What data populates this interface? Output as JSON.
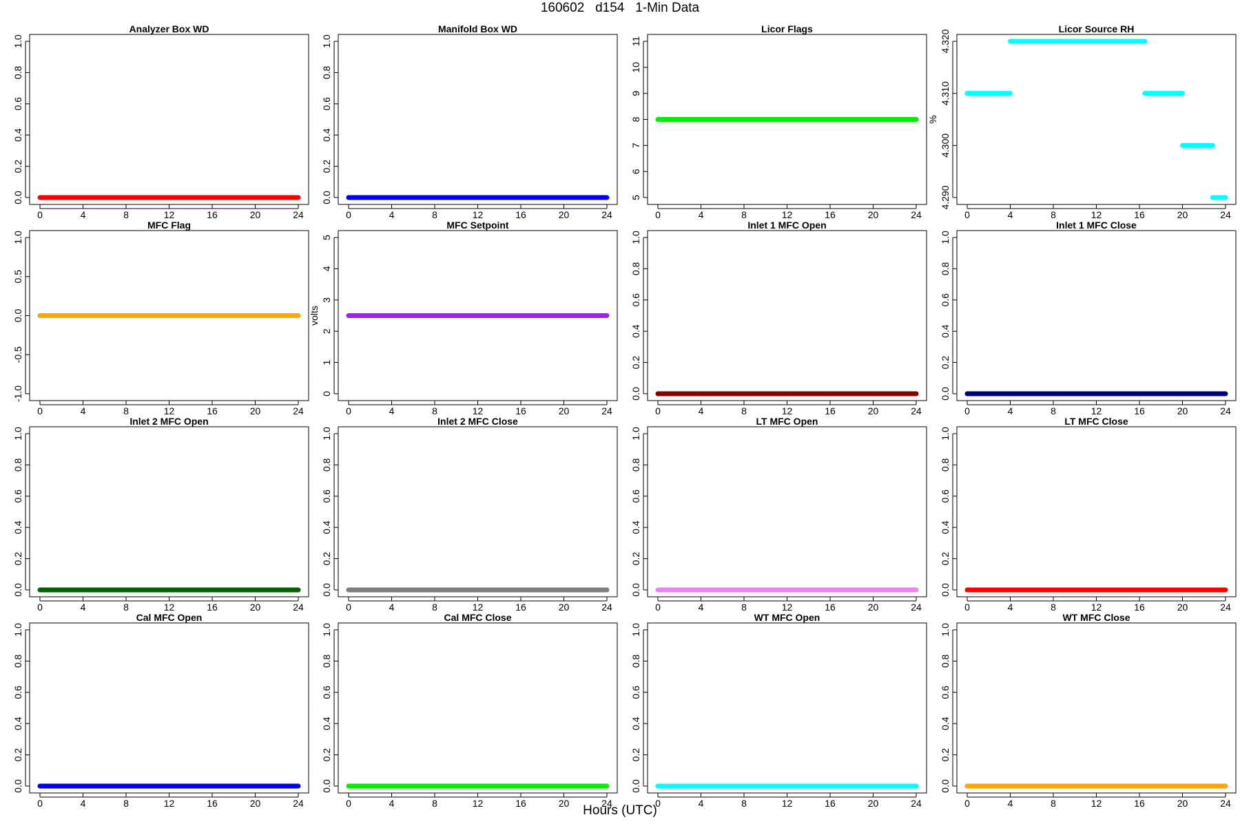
{
  "figure": {
    "title": "160602   d154   1-Min Data",
    "xlabel": "Hours (UTC)"
  },
  "chart_data": [
    {
      "type": "scatter",
      "title": "Analyzer Box WD",
      "ylabel": "",
      "color": "#ff0000",
      "xlim": [
        0,
        24
      ],
      "ylim": [
        0,
        1
      ],
      "xticks": [
        "0",
        "4",
        "8",
        "12",
        "16",
        "20",
        "24"
      ],
      "yticks": [
        "0.0",
        "0.2",
        "0.4",
        "0.6",
        "0.8",
        "1.0"
      ],
      "segments": [
        {
          "x": [
            0,
            24
          ],
          "y": 0
        }
      ]
    },
    {
      "type": "scatter",
      "title": "Manifold Box WD",
      "ylabel": "",
      "color": "#0000ff",
      "xlim": [
        0,
        24
      ],
      "ylim": [
        0,
        1
      ],
      "xticks": [
        "0",
        "4",
        "8",
        "12",
        "16",
        "20",
        "24"
      ],
      "yticks": [
        "0.0",
        "0.2",
        "0.4",
        "0.6",
        "0.8",
        "1.0"
      ],
      "segments": [
        {
          "x": [
            0,
            24
          ],
          "y": 0
        }
      ]
    },
    {
      "type": "scatter",
      "title": "Licor Flags",
      "ylabel": "",
      "color": "#00ee00",
      "xlim": [
        0,
        24
      ],
      "ylim": [
        5,
        11
      ],
      "xticks": [
        "0",
        "4",
        "8",
        "12",
        "16",
        "20",
        "24"
      ],
      "yticks": [
        "5",
        "6",
        "7",
        "8",
        "9",
        "10",
        "11"
      ],
      "segments": [
        {
          "x": [
            0,
            24
          ],
          "y": 8
        }
      ]
    },
    {
      "type": "scatter",
      "title": "Licor Source RH",
      "ylabel": "%",
      "color": "#00ffff",
      "xlim": [
        0,
        24
      ],
      "ylim": [
        4.29,
        4.32
      ],
      "xticks": [
        "0",
        "4",
        "8",
        "12",
        "16",
        "20",
        "24"
      ],
      "yticks": [
        "4.290",
        "4.300",
        "4.310",
        "4.320"
      ],
      "segments": [
        {
          "x": [
            0,
            4
          ],
          "y": 4.31
        },
        {
          "x": [
            4,
            16.5
          ],
          "y": 4.32
        },
        {
          "x": [
            16.5,
            20
          ],
          "y": 4.31
        },
        {
          "x": [
            20,
            22.8
          ],
          "y": 4.3
        },
        {
          "x": [
            22.8,
            24
          ],
          "y": 4.29
        }
      ]
    },
    {
      "type": "scatter",
      "title": "MFC Flag",
      "ylabel": "",
      "color": "#ffa500",
      "xlim": [
        0,
        24
      ],
      "ylim": [
        -1,
        1
      ],
      "xticks": [
        "0",
        "4",
        "8",
        "12",
        "16",
        "20",
        "24"
      ],
      "yticks": [
        "-1.0",
        "-0.5",
        "0.0",
        "0.5",
        "1.0"
      ],
      "segments": [
        {
          "x": [
            0,
            24
          ],
          "y": 0
        }
      ]
    },
    {
      "type": "scatter",
      "title": "MFC Setpoint",
      "ylabel": "volts",
      "color": "#a020f0",
      "xlim": [
        0,
        24
      ],
      "ylim": [
        0,
        5
      ],
      "xticks": [
        "0",
        "4",
        "8",
        "12",
        "16",
        "20",
        "24"
      ],
      "yticks": [
        "0",
        "1",
        "2",
        "3",
        "4",
        "5"
      ],
      "segments": [
        {
          "x": [
            0,
            24
          ],
          "y": 2.5
        }
      ]
    },
    {
      "type": "scatter",
      "title": "Inlet 1 MFC Open",
      "ylabel": "",
      "color": "#8b0000",
      "xlim": [
        0,
        24
      ],
      "ylim": [
        0,
        1
      ],
      "xticks": [
        "0",
        "4",
        "8",
        "12",
        "16",
        "20",
        "24"
      ],
      "yticks": [
        "0.0",
        "0.2",
        "0.4",
        "0.6",
        "0.8",
        "1.0"
      ],
      "segments": [
        {
          "x": [
            0,
            24
          ],
          "y": 0
        }
      ]
    },
    {
      "type": "scatter",
      "title": "Inlet 1 MFC Close",
      "ylabel": "",
      "color": "#000080",
      "xlim": [
        0,
        24
      ],
      "ylim": [
        0,
        1
      ],
      "xticks": [
        "0",
        "4",
        "8",
        "12",
        "16",
        "20",
        "24"
      ],
      "yticks": [
        "0.0",
        "0.2",
        "0.4",
        "0.6",
        "0.8",
        "1.0"
      ],
      "segments": [
        {
          "x": [
            0,
            24
          ],
          "y": 0
        }
      ]
    },
    {
      "type": "scatter",
      "title": "Inlet 2 MFC Open",
      "ylabel": "",
      "color": "#006400",
      "xlim": [
        0,
        24
      ],
      "ylim": [
        0,
        1
      ],
      "xticks": [
        "0",
        "4",
        "8",
        "12",
        "16",
        "20",
        "24"
      ],
      "yticks": [
        "0.0",
        "0.2",
        "0.4",
        "0.6",
        "0.8",
        "1.0"
      ],
      "segments": [
        {
          "x": [
            0,
            24
          ],
          "y": 0
        }
      ]
    },
    {
      "type": "scatter",
      "title": "Inlet 2 MFC Close",
      "ylabel": "",
      "color": "#808080",
      "xlim": [
        0,
        24
      ],
      "ylim": [
        0,
        1
      ],
      "xticks": [
        "0",
        "4",
        "8",
        "12",
        "16",
        "20",
        "24"
      ],
      "yticks": [
        "0.0",
        "0.2",
        "0.4",
        "0.6",
        "0.8",
        "1.0"
      ],
      "segments": [
        {
          "x": [
            0,
            24
          ],
          "y": 0
        }
      ]
    },
    {
      "type": "scatter",
      "title": "LT MFC Open",
      "ylabel": "",
      "color": "#ee82ee",
      "xlim": [
        0,
        24
      ],
      "ylim": [
        0,
        1
      ],
      "xticks": [
        "0",
        "4",
        "8",
        "12",
        "16",
        "20",
        "24"
      ],
      "yticks": [
        "0.0",
        "0.2",
        "0.4",
        "0.6",
        "0.8",
        "1.0"
      ],
      "segments": [
        {
          "x": [
            0,
            24
          ],
          "y": 0
        }
      ]
    },
    {
      "type": "scatter",
      "title": "LT MFC Close",
      "ylabel": "",
      "color": "#ff0000",
      "xlim": [
        0,
        24
      ],
      "ylim": [
        0,
        1
      ],
      "xticks": [
        "0",
        "4",
        "8",
        "12",
        "16",
        "20",
        "24"
      ],
      "yticks": [
        "0.0",
        "0.2",
        "0.4",
        "0.6",
        "0.8",
        "1.0"
      ],
      "segments": [
        {
          "x": [
            0,
            24
          ],
          "y": 0
        }
      ]
    },
    {
      "type": "scatter",
      "title": "Cal MFC Open",
      "ylabel": "",
      "color": "#0000ff",
      "xlim": [
        0,
        24
      ],
      "ylim": [
        0,
        1
      ],
      "xticks": [
        "0",
        "4",
        "8",
        "12",
        "16",
        "20",
        "24"
      ],
      "yticks": [
        "0.0",
        "0.2",
        "0.4",
        "0.6",
        "0.8",
        "1.0"
      ],
      "segments": [
        {
          "x": [
            0,
            24
          ],
          "y": 0
        }
      ]
    },
    {
      "type": "scatter",
      "title": "Cal MFC Close",
      "ylabel": "",
      "color": "#00ee00",
      "xlim": [
        0,
        24
      ],
      "ylim": [
        0,
        1
      ],
      "xticks": [
        "0",
        "4",
        "8",
        "12",
        "16",
        "20",
        "24"
      ],
      "yticks": [
        "0.0",
        "0.2",
        "0.4",
        "0.6",
        "0.8",
        "1.0"
      ],
      "segments": [
        {
          "x": [
            0,
            24
          ],
          "y": 0
        }
      ]
    },
    {
      "type": "scatter",
      "title": "WT MFC Open",
      "ylabel": "",
      "color": "#00ffff",
      "xlim": [
        0,
        24
      ],
      "ylim": [
        0,
        1
      ],
      "xticks": [
        "0",
        "4",
        "8",
        "12",
        "16",
        "20",
        "24"
      ],
      "yticks": [
        "0.0",
        "0.2",
        "0.4",
        "0.6",
        "0.8",
        "1.0"
      ],
      "segments": [
        {
          "x": [
            0,
            24
          ],
          "y": 0
        }
      ]
    },
    {
      "type": "scatter",
      "title": "WT MFC Close",
      "ylabel": "",
      "color": "#ffa500",
      "xlim": [
        0,
        24
      ],
      "ylim": [
        0,
        1
      ],
      "xticks": [
        "0",
        "4",
        "8",
        "12",
        "16",
        "20",
        "24"
      ],
      "yticks": [
        "0.0",
        "0.2",
        "0.4",
        "0.6",
        "0.8",
        "1.0"
      ],
      "segments": [
        {
          "x": [
            0,
            24
          ],
          "y": 0
        }
      ]
    }
  ]
}
